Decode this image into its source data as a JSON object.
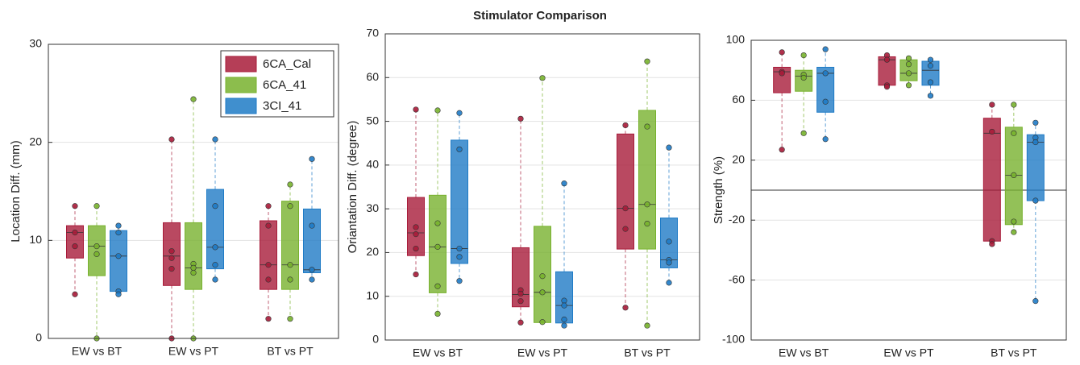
{
  "title": "Stimulator Comparison",
  "chart_data": [
    {
      "type": "box",
      "ylabel": "Location Diff. (mm)",
      "categories": [
        "EW vs BT",
        "EW vs PT",
        "BT vs PT"
      ],
      "ylim": [
        0,
        30
      ],
      "yticks": [
        0,
        10,
        20,
        30
      ],
      "grid": true,
      "legend": "northeast",
      "series": [
        {
          "name": "6CA_Cal",
          "color": "#a81c3a",
          "values": [
            {
              "min": 4.5,
              "q1": 8.2,
              "median": 10.8,
              "q3": 11.5,
              "max": 13.5,
              "points": [
                13.5,
                10.8,
                9.4,
                4.5
              ]
            },
            {
              "min": 0,
              "q1": 5.4,
              "median": 8.4,
              "q3": 11.8,
              "max": 20.3,
              "points": [
                20.3,
                8.9,
                8.2,
                7.1,
                0
              ]
            },
            {
              "min": 2,
              "q1": 5,
              "median": 7.5,
              "q3": 12,
              "max": 13.5,
              "points": [
                13.5,
                11.5,
                7.5,
                6,
                2
              ]
            }
          ]
        },
        {
          "name": "6CA_41",
          "color": "#78b22e",
          "values": [
            {
              "min": 0,
              "q1": 6.4,
              "median": 9.4,
              "q3": 11.5,
              "max": 13.5,
              "points": [
                13.5,
                9.4,
                8.6,
                0
              ]
            },
            {
              "min": 0,
              "q1": 5,
              "median": 7.2,
              "q3": 11.8,
              "max": 24.4,
              "points": [
                24.4,
                7.6,
                7.2,
                6.7,
                0
              ]
            },
            {
              "min": 2,
              "q1": 5,
              "median": 7.5,
              "q3": 14,
              "max": 15.7,
              "points": [
                15.7,
                13.5,
                7.5,
                6,
                2
              ]
            }
          ]
        },
        {
          "name": "3CI_41",
          "color": "#1f7bc6",
          "values": [
            {
              "min": 4.5,
              "q1": 4.8,
              "median": 8.4,
              "q3": 11,
              "max": 11.5,
              "points": [
                11.5,
                10.8,
                8.4,
                4.8,
                4.5
              ]
            },
            {
              "min": 6,
              "q1": 7.1,
              "median": 9.3,
              "q3": 15.2,
              "max": 20.3,
              "points": [
                20.3,
                13.5,
                9.3,
                7.5,
                6
              ]
            },
            {
              "min": 6,
              "q1": 6.7,
              "median": 7,
              "q3": 13.2,
              "max": 18.3,
              "points": [
                18.3,
                11.5,
                7,
                6
              ]
            }
          ]
        }
      ]
    },
    {
      "type": "box",
      "ylabel": "Oriantation Diff. (degree)",
      "categories": [
        "EW vs BT",
        "EW vs PT",
        "BT vs PT"
      ],
      "ylim": [
        0,
        70
      ],
      "yticks": [
        0,
        10,
        20,
        30,
        40,
        50,
        60,
        70
      ],
      "grid": true,
      "series": [
        {
          "color": "#a81c3a",
          "values": [
            {
              "min": 15,
              "q1": 19.3,
              "median": 24.5,
              "q3": 32.6,
              "max": 52.7,
              "points": [
                52.7,
                25.8,
                24.2,
                20.9,
                15
              ]
            },
            {
              "min": 4,
              "q1": 7.6,
              "median": 10.4,
              "q3": 21.1,
              "max": 50.6,
              "points": [
                50.6,
                11.4,
                10.6,
                8.9,
                4
              ]
            },
            {
              "min": 7.4,
              "q1": 20.8,
              "median": 30.1,
              "q3": 47.1,
              "max": 49.1,
              "points": [
                49.1,
                30.1,
                25.4,
                7.4
              ]
            }
          ]
        },
        {
          "color": "#78b22e",
          "values": [
            {
              "min": 6,
              "q1": 10.8,
              "median": 21.3,
              "q3": 33.1,
              "max": 52.5,
              "points": [
                52.5,
                26.7,
                21.3,
                12.3,
                6
              ]
            },
            {
              "min": 3.9,
              "q1": 4,
              "median": 10.9,
              "q3": 26,
              "max": 59.9,
              "points": [
                59.9,
                14.6,
                10.9,
                4.1
              ]
            },
            {
              "min": 3.3,
              "q1": 20.8,
              "median": 31,
              "q3": 52.5,
              "max": 63.7,
              "points": [
                63.7,
                48.8,
                31,
                26.6,
                3.3
              ]
            }
          ]
        },
        {
          "color": "#1f7bc6",
          "values": [
            {
              "min": 13.5,
              "q1": 17.5,
              "median": 20.9,
              "q3": 45.7,
              "max": 51.9,
              "points": [
                51.9,
                43.6,
                20.9,
                19,
                13.5
              ]
            },
            {
              "min": 3.3,
              "q1": 3.9,
              "median": 7.9,
              "q3": 15.6,
              "max": 35.8,
              "points": [
                35.8,
                9,
                7.9,
                4.7,
                3.3
              ]
            },
            {
              "min": 13.1,
              "q1": 16.5,
              "median": 18.3,
              "q3": 27.9,
              "max": 44,
              "points": [
                44,
                22.5,
                18.3,
                17.7,
                13.1
              ]
            }
          ]
        }
      ]
    },
    {
      "type": "box",
      "ylabel": "Strength (%)",
      "categories": [
        "EW vs BT",
        "EW vs PT",
        "BT vs PT"
      ],
      "ylim": [
        -100,
        100
      ],
      "yticks": [
        -100,
        -60,
        -20,
        20,
        60,
        100
      ],
      "grid": true,
      "hline": 0,
      "series": [
        {
          "color": "#a81c3a",
          "values": [
            {
              "min": 27,
              "q1": 65,
              "median": 79,
              "q3": 82,
              "max": 92,
              "points": [
                92,
                79,
                78,
                27
              ]
            },
            {
              "min": 69,
              "q1": 70,
              "median": 87,
              "q3": 89,
              "max": 90,
              "points": [
                90,
                87,
                70,
                69
              ]
            },
            {
              "min": -36,
              "q1": -34,
              "median": 38,
              "q3": 48,
              "max": 57,
              "points": [
                57,
                39,
                -34,
                -36
              ]
            }
          ]
        },
        {
          "color": "#78b22e",
          "values": [
            {
              "min": 38,
              "q1": 66,
              "median": 76,
              "q3": 80,
              "max": 90,
              "points": [
                90,
                77,
                75,
                38
              ]
            },
            {
              "min": 70,
              "q1": 73,
              "median": 78,
              "q3": 87,
              "max": 88,
              "points": [
                88,
                84,
                78,
                70
              ]
            },
            {
              "min": -28,
              "q1": -23,
              "median": 10,
              "q3": 42,
              "max": 57,
              "points": [
                57,
                38,
                10,
                -21,
                -28
              ]
            }
          ]
        },
        {
          "color": "#1f7bc6",
          "values": [
            {
              "min": 34,
              "q1": 52,
              "median": 78,
              "q3": 82,
              "max": 94,
              "points": [
                94,
                78,
                59,
                34
              ]
            },
            {
              "min": 63,
              "q1": 70,
              "median": 80,
              "q3": 86,
              "max": 87,
              "points": [
                87,
                83,
                72,
                63
              ]
            },
            {
              "min": -74,
              "q1": -7,
              "median": 32,
              "q3": 37,
              "max": 45,
              "points": [
                45,
                35,
                32,
                -7,
                -74
              ]
            }
          ]
        }
      ]
    }
  ]
}
